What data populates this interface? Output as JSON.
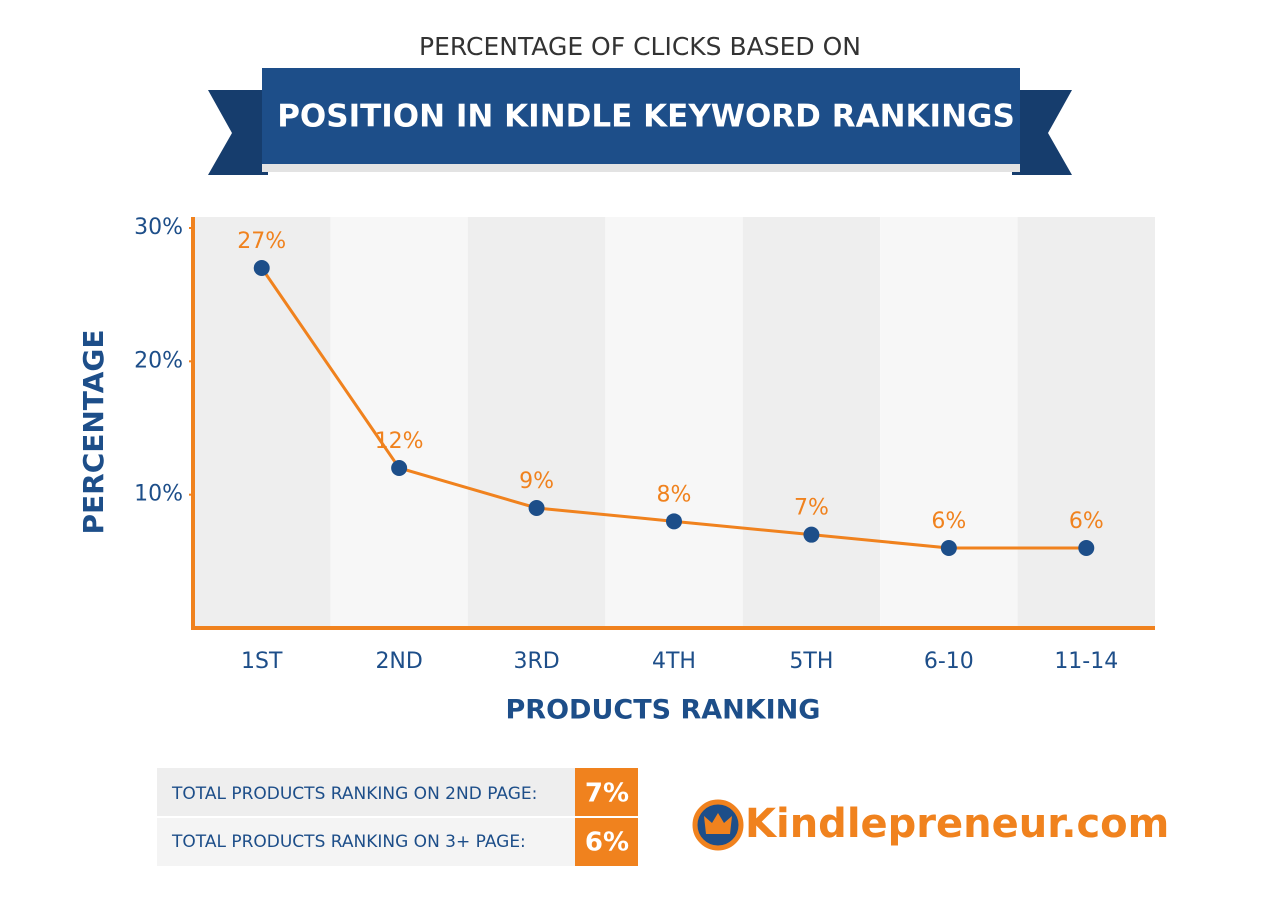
{
  "header": {
    "title": "PERCENTAGE OF CLICKS BASED ON",
    "banner": "POSITION IN KINDLE KEYWORD RANKINGS"
  },
  "chart_data": {
    "type": "line",
    "y_label": "PERCENTAGE",
    "x_label": "PRODUCTS RANKING",
    "categories": [
      "1ST",
      "2ND",
      "3RD",
      "4TH",
      "5TH",
      "6-10",
      "11-14"
    ],
    "values": [
      27,
      12,
      9,
      8,
      7,
      6,
      6
    ],
    "value_labels": [
      "27%",
      "12%",
      "9%",
      "8%",
      "7%",
      "6%",
      "6%"
    ],
    "color": "#f0821e",
    "marker_color": "#1d4e89",
    "ylim": [
      0,
      30
    ],
    "yticks": [
      {
        "value": 10,
        "label": "10%"
      },
      {
        "value": 20,
        "label": "20%"
      },
      {
        "value": 30,
        "label": "30%"
      }
    ]
  },
  "summary": [
    {
      "label": "TOTAL PRODUCTS RANKING ON 2ND PAGE:",
      "value": "7%"
    },
    {
      "label": "TOTAL PRODUCTS RANKING ON 3+ PAGE:",
      "value": "6%"
    }
  ],
  "logo": "Kindlepreneur.com"
}
